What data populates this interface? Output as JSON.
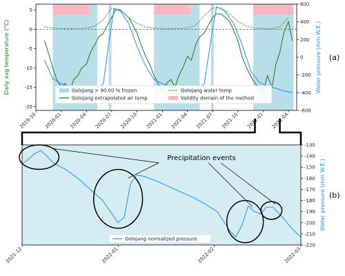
{
  "chart_data": [
    {
      "type": "line",
      "panel_label": "(a)",
      "ylabel": "Daily avg temperature (°C)",
      "ylabel_right": "Water pressure (mm W.E.)",
      "xlim": [
        "2019-10-01",
        "2022-05-01"
      ],
      "ylim": [
        -21,
        6.5
      ],
      "ylim_right": [
        -600,
        600
      ],
      "x_ticks": [
        "2019-10",
        "2020-01",
        "2020-04",
        "2020-07",
        "2020-10",
        "2021-01",
        "2021-04",
        "2021-07",
        "2021-10",
        "2022-01",
        "2022-04"
      ],
      "y_ticks": [
        5,
        0,
        -5,
        -10,
        -15,
        -20
      ],
      "y_ticks_right": [
        600,
        400,
        200,
        0,
        -200,
        -400,
        -600
      ],
      "zero_line": 0,
      "shaded_frozen": [
        [
          "2019-12-01",
          "2020-05-10"
        ],
        [
          "2020-06-20",
          "2020-06-30"
        ],
        [
          "2020-12-01",
          "2021-05-15"
        ],
        [
          "2021-06-25",
          "2021-07-05"
        ],
        [
          "2021-11-25",
          "2022-04-20"
        ]
      ],
      "validity_domain": [
        [
          "2019-12-01",
          "2020-04-10"
        ],
        [
          "2020-12-01",
          "2021-04-10"
        ],
        [
          "2021-11-25",
          "2022-04-20"
        ]
      ],
      "legend": [
        {
          "label": "Golojang > 90.00 % frozen",
          "kind": "patch",
          "color": "#add8e6"
        },
        {
          "label": "Golojang water temp",
          "kind": "dashed",
          "color": "#2a9d2a"
        },
        {
          "label": "Golojang extrapolated air temp",
          "kind": "line",
          "color": "#1a7a1a"
        },
        {
          "label": "Validity domain of the method",
          "kind": "patch",
          "color": "#ffb6c1"
        }
      ],
      "series": [
        {
          "name": "Golojang extrapolated air temp",
          "axis": "left",
          "color": "#1a7a1a",
          "x": [
            "2019-11-01",
            "2019-11-15",
            "2019-12-01",
            "2019-12-15",
            "2020-01-01",
            "2020-01-15",
            "2020-02-01",
            "2020-02-15",
            "2020-03-01",
            "2020-03-15",
            "2020-04-01",
            "2020-04-15",
            "2020-05-01",
            "2020-05-15",
            "2020-06-01",
            "2020-06-15",
            "2020-07-01",
            "2020-07-15",
            "2020-08-01",
            "2020-09-01",
            "2020-10-01",
            "2020-10-15",
            "2020-11-01",
            "2020-11-15",
            "2020-12-01",
            "2020-12-15",
            "2021-01-01",
            "2021-01-15",
            "2021-02-01",
            "2021-02-15",
            "2021-03-01",
            "2021-03-15",
            "2021-04-01",
            "2021-04-15",
            "2021-05-01",
            "2021-05-15",
            "2021-06-01",
            "2021-06-15",
            "2021-07-01",
            "2021-07-15",
            "2021-08-01",
            "2021-09-01",
            "2021-10-01",
            "2021-10-15",
            "2021-11-01",
            "2021-11-15",
            "2021-12-01",
            "2021-12-15",
            "2022-01-01",
            "2022-01-15",
            "2022-02-01",
            "2022-02-15",
            "2022-03-01",
            "2022-03-15",
            "2022-04-01",
            "2022-04-15"
          ],
          "y": [
            -3,
            -6,
            -10,
            -13,
            -15,
            -14,
            -16,
            -13,
            -12,
            -10,
            -9,
            -6,
            -4,
            -2,
            -1,
            1,
            3,
            5,
            5,
            3,
            -1,
            -4,
            -7,
            -9,
            -12,
            -14,
            -16,
            -14,
            -13,
            -15,
            -12,
            -10,
            -7,
            -8,
            -4,
            -2,
            -1,
            1,
            3,
            4,
            4,
            2,
            -3,
            -7,
            -10,
            -12,
            -14,
            -15,
            -16,
            -12,
            -15,
            -9,
            -6,
            -1,
            2,
            -3
          ]
        },
        {
          "name": "Golojang water temp",
          "axis": "left",
          "color": "#2a9d2a",
          "x": [
            "2019-11-01",
            "2019-12-01",
            "2020-01-01",
            "2020-02-01",
            "2020-03-01",
            "2020-04-01",
            "2020-05-01",
            "2020-06-01",
            "2020-07-01",
            "2020-08-01",
            "2020-09-01",
            "2020-10-01",
            "2020-11-01",
            "2020-12-01",
            "2021-01-01",
            "2021-02-01",
            "2021-03-01",
            "2021-04-01",
            "2021-05-01",
            "2021-06-01",
            "2021-07-01",
            "2021-08-01",
            "2021-09-01",
            "2021-10-01",
            "2021-11-01",
            "2021-12-01",
            "2022-01-01",
            "2022-02-01",
            "2022-03-01",
            "2022-04-01"
          ],
          "y": [
            0.7,
            0.3,
            0.2,
            0.2,
            0.2,
            0.3,
            0.8,
            2.5,
            5.5,
            5,
            3,
            1.5,
            0.6,
            0.3,
            0.2,
            0.2,
            0.2,
            0.3,
            1,
            3.5,
            5.5,
            5.5,
            4,
            2,
            0.8,
            0.3,
            0.2,
            0.2,
            0.6,
            3
          ]
        },
        {
          "name": "Water pressure",
          "axis": "right",
          "color": "#1e90ff",
          "x": [
            "2019-11-01",
            "2019-12-01",
            "2020-01-01",
            "2020-02-01",
            "2020-03-01",
            "2020-04-01",
            "2020-05-01",
            "2020-06-01",
            "2020-06-20",
            "2020-07-10",
            "2020-08-01",
            "2020-09-01",
            "2020-10-01",
            "2020-11-01",
            "2020-12-01",
            "2021-01-01",
            "2021-02-01",
            "2021-03-01",
            "2021-04-01",
            "2021-05-01",
            "2021-06-01",
            "2021-06-25",
            "2021-07-15",
            "2021-08-15",
            "2021-09-15",
            "2021-10-15",
            "2021-11-15",
            "2021-12-15",
            "2022-01-15",
            "2022-02-15",
            "2022-03-15",
            "2022-04-15"
          ],
          "y": [
            -30,
            -240,
            -300,
            -330,
            -350,
            -370,
            -380,
            -300,
            150,
            550,
            520,
            380,
            120,
            -100,
            -250,
            -300,
            -330,
            -350,
            -370,
            -380,
            -300,
            200,
            570,
            520,
            380,
            150,
            -150,
            -280,
            -330,
            -350,
            -380,
            -400
          ]
        }
      ]
    },
    {
      "type": "line",
      "panel_label": "(b)",
      "ylabel_right": "Water pressure (mm W.E.)",
      "xlim": [
        "2021-12-01",
        "2022-03-01"
      ],
      "ylim": [
        -220,
        -130
      ],
      "x_ticks": [
        "2021-12",
        "2022-01",
        "2022-02",
        "2022-03"
      ],
      "y_ticks_right": [
        -130,
        -140,
        -150,
        -160,
        -170,
        -180,
        -190,
        -200,
        -210,
        -220
      ],
      "annotation": "Precipitation events",
      "events": [
        {
          "start": "2021-12-01",
          "end": "2021-12-12"
        },
        {
          "start": "2021-12-25",
          "end": "2022-01-08"
        },
        {
          "start": "2022-02-06",
          "end": "2022-02-16"
        },
        {
          "start": "2022-02-17",
          "end": "2022-02-22"
        }
      ],
      "legend": [
        {
          "label": "Golojang normalized pressure",
          "kind": "line",
          "color": "#1e90ff"
        }
      ],
      "series": [
        {
          "name": "Golojang normalized pressure",
          "color": "#1e90ff",
          "x": [
            "2021-12-01",
            "2021-12-03",
            "2021-12-05",
            "2021-12-07",
            "2021-12-09",
            "2021-12-11",
            "2021-12-15",
            "2021-12-19",
            "2021-12-23",
            "2021-12-27",
            "2022-01-01",
            "2022-01-03",
            "2022-01-05",
            "2022-01-07",
            "2022-01-09",
            "2022-01-13",
            "2022-01-17",
            "2022-01-21",
            "2022-01-25",
            "2022-01-29",
            "2022-02-02",
            "2022-02-06",
            "2022-02-08",
            "2022-02-10",
            "2022-02-12",
            "2022-02-14",
            "2022-02-16",
            "2022-02-18",
            "2022-02-20",
            "2022-02-22",
            "2022-02-24",
            "2022-02-26",
            "2022-03-01"
          ],
          "y": [
            -147,
            -143,
            -138,
            -135,
            -140,
            -146,
            -152,
            -160,
            -170,
            -180,
            -200,
            -195,
            -165,
            -157,
            -158,
            -162,
            -167,
            -172,
            -177,
            -183,
            -190,
            -207,
            -213,
            -202,
            -185,
            -190,
            -192,
            -186,
            -186,
            -192,
            -198,
            -205,
            -213
          ]
        }
      ]
    }
  ]
}
